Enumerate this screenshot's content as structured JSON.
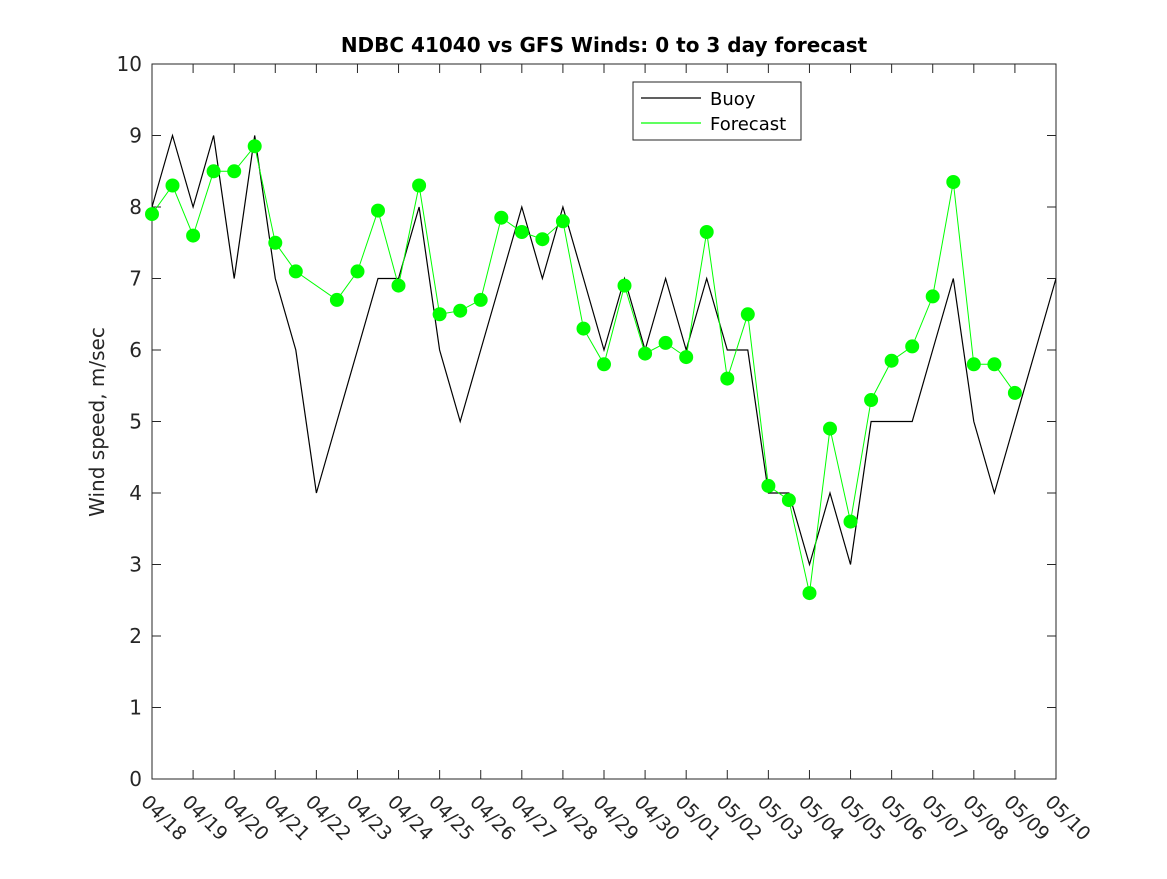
{
  "chart_data": {
    "type": "line",
    "title": "NDBC 41040 vs GFS Winds: 0 to 3 day forecast",
    "xlabel": "",
    "ylabel": "Wind speed, m/sec",
    "ylim": [
      0,
      10
    ],
    "yticks": [
      "0",
      "1",
      "2",
      "3",
      "4",
      "5",
      "6",
      "7",
      "8",
      "9",
      "10"
    ],
    "x_tick_labels": [
      "04/18",
      "04/19",
      "04/20",
      "04/21",
      "04/22",
      "04/23",
      "04/24",
      "04/25",
      "04/26",
      "04/27",
      "04/28",
      "04/29",
      "04/30",
      "05/01",
      "05/02",
      "05/03",
      "05/04",
      "05/05",
      "05/06",
      "05/07",
      "05/08",
      "05/09",
      "05/10"
    ],
    "grid": false,
    "legend": {
      "location": "top-center",
      "entries": [
        {
          "name": "Buoy",
          "color": "#000000"
        },
        {
          "name": "Forecast",
          "color": "#00ff00"
        }
      ]
    },
    "series": [
      {
        "name": "Buoy",
        "color": "#000000",
        "style": "line",
        "x": [
          "04/18",
          "04/18 12:00",
          "04/19",
          "04/19 12:00",
          "04/20",
          "04/20 12:00",
          "04/21",
          "04/21 12:00",
          "04/22",
          "04/22 12:00",
          "04/23",
          "04/23 12:00",
          "04/24",
          "04/24 12:00",
          "04/25",
          "04/25 12:00",
          "04/26",
          "04/26 12:00",
          "04/27",
          "04/27 12:00",
          "04/28",
          "04/28 12:00",
          "04/29",
          "04/29 12:00",
          "04/30",
          "04/30 12:00",
          "05/01",
          "05/01 12:00",
          "05/02",
          "05/02 12:00",
          "05/03",
          "05/03 12:00",
          "05/04",
          "05/04 12:00",
          "05/05",
          "05/05 12:00",
          "05/06",
          "05/06 12:00",
          "05/07",
          "05/07 12:00",
          "05/08",
          "05/08 12:00",
          "05/09",
          "05/09 12:00",
          "05/10"
        ],
        "y": [
          8,
          9,
          8,
          9,
          7,
          9,
          7,
          6,
          4,
          5,
          6,
          7,
          7,
          8,
          6,
          5,
          6,
          7,
          8,
          7,
          8,
          7,
          6,
          7,
          6,
          7,
          6,
          7,
          6,
          6,
          4,
          4,
          3,
          4,
          3,
          5,
          5,
          5,
          6,
          7,
          5,
          4,
          5,
          6,
          7
        ]
      },
      {
        "name": "Forecast",
        "color": "#00ff00",
        "style": "markers",
        "x": [
          "04/18",
          "04/18 12:00",
          "04/19",
          "04/19 12:00",
          "04/20",
          "04/20 12:00",
          "04/21",
          "04/21 12:00",
          "04/22 12:00",
          "04/23",
          "04/23 12:00",
          "04/24",
          "04/24 12:00",
          "04/25",
          "04/25 12:00",
          "04/26",
          "04/26 12:00",
          "04/27",
          "04/27 12:00",
          "04/28",
          "04/28 12:00",
          "04/29",
          "04/29 12:00",
          "04/30",
          "04/30 12:00",
          "05/01",
          "05/01 12:00",
          "05/02",
          "05/02 12:00",
          "05/03",
          "05/03 12:00",
          "05/04",
          "05/04 12:00",
          "05/05",
          "05/05 12:00",
          "05/06",
          "05/06 12:00",
          "05/07",
          "05/07 12:00",
          "05/08",
          "05/08 12:00",
          "05/09"
        ],
        "y": [
          7.9,
          8.3,
          7.6,
          8.5,
          8.5,
          8.85,
          7.5,
          7.1,
          6.7,
          7.1,
          7.95,
          6.9,
          8.3,
          6.5,
          6.55,
          6.7,
          7.85,
          7.65,
          7.55,
          7.8,
          6.3,
          5.8,
          6.9,
          5.95,
          6.1,
          5.9,
          7.65,
          5.6,
          6.5,
          4.1,
          3.9,
          2.6,
          4.9,
          3.6,
          5.3,
          5.85,
          6.05,
          6.75,
          8.35,
          5.8,
          5.8,
          5.4
        ]
      }
    ]
  }
}
